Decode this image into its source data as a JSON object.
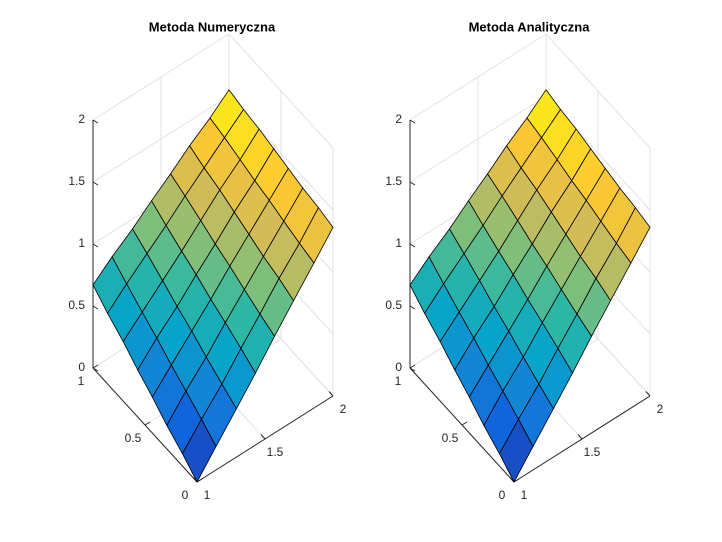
{
  "chart_data": [
    {
      "type": "surface",
      "title": "Metoda Numeryczna",
      "x": [
        1,
        1.14,
        1.29,
        1.43,
        1.57,
        1.71,
        1.86,
        2
      ],
      "y": [
        0,
        0.14,
        0.29,
        0.43,
        0.57,
        0.71,
        0.86,
        1
      ],
      "z": [
        [
          0,
          0.19,
          0.39,
          0.58,
          0.78,
          0.97,
          1.17,
          1.36
        ],
        [
          0.1,
          0.28,
          0.46,
          0.65,
          0.83,
          1.02,
          1.2,
          1.39
        ],
        [
          0.19,
          0.37,
          0.54,
          0.72,
          0.89,
          1.06,
          1.24,
          1.41
        ],
        [
          0.29,
          0.45,
          0.62,
          0.78,
          0.95,
          1.11,
          1.28,
          1.44
        ],
        [
          0.38,
          0.54,
          0.69,
          0.85,
          1.0,
          1.16,
          1.31,
          1.47
        ],
        [
          0.48,
          0.62,
          0.77,
          0.91,
          1.06,
          1.21,
          1.35,
          1.5
        ],
        [
          0.57,
          0.71,
          0.85,
          0.98,
          1.12,
          1.25,
          1.39,
          1.52
        ],
        [
          0.67,
          0.8,
          0.92,
          1.05,
          1.17,
          1.3,
          1.42,
          1.55
        ]
      ],
      "xlim": [
        1,
        2
      ],
      "ylim": [
        0,
        1
      ],
      "zlim": [
        0,
        2
      ],
      "xticks": [
        1,
        1.5,
        2
      ],
      "yticks": [
        0,
        0.5,
        1
      ],
      "zticks": [
        0,
        0.5,
        1,
        1.5,
        2
      ],
      "grid": true,
      "colormap": [
        "#352a87",
        "#0f5cdd",
        "#1481d6",
        "#06a4ca",
        "#2eb7a4",
        "#87bf77",
        "#d1bb59",
        "#fec832",
        "#f9fb0e"
      ]
    },
    {
      "type": "surface",
      "title": "Metoda Analityczna",
      "x": [
        1,
        1.14,
        1.29,
        1.43,
        1.57,
        1.71,
        1.86,
        2
      ],
      "y": [
        0,
        0.14,
        0.29,
        0.43,
        0.57,
        0.71,
        0.86,
        1
      ],
      "z": [
        [
          0,
          0.19,
          0.39,
          0.58,
          0.78,
          0.97,
          1.17,
          1.36
        ],
        [
          0.1,
          0.28,
          0.46,
          0.65,
          0.83,
          1.02,
          1.2,
          1.39
        ],
        [
          0.19,
          0.37,
          0.54,
          0.72,
          0.89,
          1.06,
          1.24,
          1.41
        ],
        [
          0.29,
          0.45,
          0.62,
          0.78,
          0.95,
          1.11,
          1.28,
          1.44
        ],
        [
          0.38,
          0.54,
          0.69,
          0.85,
          1.0,
          1.16,
          1.31,
          1.47
        ],
        [
          0.48,
          0.62,
          0.77,
          0.91,
          1.06,
          1.21,
          1.35,
          1.5
        ],
        [
          0.57,
          0.71,
          0.85,
          0.98,
          1.12,
          1.25,
          1.39,
          1.52
        ],
        [
          0.67,
          0.8,
          0.92,
          1.05,
          1.17,
          1.3,
          1.42,
          1.55
        ]
      ],
      "xlim": [
        1,
        2
      ],
      "ylim": [
        0,
        1
      ],
      "zlim": [
        0,
        2
      ],
      "xticks": [
        1,
        1.5,
        2
      ],
      "yticks": [
        0,
        0.5,
        1
      ],
      "zticks": [
        0,
        0.5,
        1,
        1.5,
        2
      ],
      "grid": true,
      "colormap": [
        "#352a87",
        "#0f5cdd",
        "#1481d6",
        "#06a4ca",
        "#2eb7a4",
        "#87bf77",
        "#d1bb59",
        "#fec832",
        "#f9fb0e"
      ]
    }
  ]
}
